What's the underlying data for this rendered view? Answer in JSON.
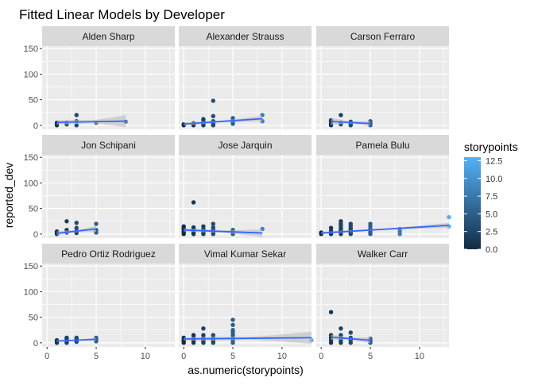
{
  "chart_data": {
    "type": "scatter",
    "title": "Fitted Linear Models by Developer",
    "xlabel": "as.numeric(storypoints)",
    "ylabel": "reported_dev",
    "xlim": [
      -0.5,
      13
    ],
    "ylim": [
      -8,
      155
    ],
    "x_ticks": [
      0,
      5,
      10
    ],
    "y_ticks": [
      0,
      50,
      100,
      150
    ],
    "grid": true,
    "facet_layout": {
      "rows": 3,
      "cols": 3
    },
    "legend": {
      "title": "storypoints",
      "placement": "right",
      "min": 0.0,
      "max": 13.0,
      "breaks": [
        "12.5",
        "10.0",
        "7.5",
        "5.0",
        "2.5",
        "0.0"
      ],
      "break_values": [
        12.5,
        10.0,
        7.5,
        5.0,
        2.5,
        0.0
      ],
      "color_low": "#132b43",
      "color_high": "#56b1f7"
    },
    "fit_line_color": "#3366ff",
    "ribbon_color": "#bdbdbd",
    "panels": [
      {
        "name": "Alden Sharp",
        "points": [
          [
            1,
            0
          ],
          [
            1,
            2
          ],
          [
            1,
            5
          ],
          [
            2,
            2
          ],
          [
            2,
            5
          ],
          [
            3,
            0
          ],
          [
            3,
            8
          ],
          [
            3,
            20
          ],
          [
            5,
            5
          ],
          [
            8,
            7
          ]
        ],
        "fit": {
          "x": [
            1,
            8
          ],
          "y": [
            5.8,
            8.2
          ]
        },
        "ribbon_halfwidth": [
          4,
          12
        ]
      },
      {
        "name": "Alexander Strauss",
        "points": [
          [
            0,
            0
          ],
          [
            0,
            2
          ],
          [
            1,
            0
          ],
          [
            1,
            2
          ],
          [
            1,
            4
          ],
          [
            2,
            0
          ],
          [
            2,
            2
          ],
          [
            2,
            5
          ],
          [
            2,
            8
          ],
          [
            2,
            12
          ],
          [
            3,
            0
          ],
          [
            3,
            3
          ],
          [
            3,
            8
          ],
          [
            3,
            18
          ],
          [
            3,
            48
          ],
          [
            5,
            3
          ],
          [
            5,
            6
          ],
          [
            5,
            10
          ],
          [
            5,
            14
          ],
          [
            8,
            8
          ],
          [
            8,
            20
          ]
        ],
        "fit": {
          "x": [
            0,
            8
          ],
          "y": [
            2.5,
            13
          ]
        },
        "ribbon_halfwidth": [
          3,
          6
        ]
      },
      {
        "name": "Carson Ferraro",
        "points": [
          [
            1,
            0
          ],
          [
            1,
            3
          ],
          [
            1,
            7
          ],
          [
            1,
            10
          ],
          [
            2,
            2
          ],
          [
            2,
            5
          ],
          [
            2,
            20
          ],
          [
            3,
            0
          ],
          [
            3,
            3
          ],
          [
            3,
            7
          ],
          [
            5,
            0
          ],
          [
            5,
            2
          ],
          [
            5,
            5
          ],
          [
            5,
            8
          ]
        ],
        "fit": {
          "x": [
            1,
            5
          ],
          "y": [
            7.5,
            3.5
          ]
        },
        "ribbon_halfwidth": [
          7,
          5
        ]
      },
      {
        "name": "Jon Schipani",
        "points": [
          [
            1,
            0
          ],
          [
            1,
            2
          ],
          [
            1,
            5
          ],
          [
            2,
            3
          ],
          [
            2,
            8
          ],
          [
            2,
            25
          ],
          [
            3,
            2
          ],
          [
            3,
            6
          ],
          [
            3,
            12
          ],
          [
            3,
            22
          ],
          [
            5,
            3
          ],
          [
            5,
            8
          ],
          [
            5,
            20
          ]
        ],
        "fit": {
          "x": [
            1,
            5
          ],
          "y": [
            1.5,
            10
          ]
        },
        "ribbon_halfwidth": [
          4,
          6
        ]
      },
      {
        "name": "Jose Jarquin",
        "points": [
          [
            0,
            0
          ],
          [
            0,
            3
          ],
          [
            0,
            6
          ],
          [
            0,
            9
          ],
          [
            0,
            12
          ],
          [
            0,
            15
          ],
          [
            1,
            0
          ],
          [
            1,
            3
          ],
          [
            1,
            6
          ],
          [
            1,
            10
          ],
          [
            1,
            13
          ],
          [
            1,
            62
          ],
          [
            2,
            0
          ],
          [
            2,
            3
          ],
          [
            2,
            6
          ],
          [
            2,
            10
          ],
          [
            2,
            15
          ],
          [
            3,
            0
          ],
          [
            3,
            3
          ],
          [
            3,
            6
          ],
          [
            3,
            9
          ],
          [
            3,
            13
          ],
          [
            3,
            20
          ],
          [
            5,
            0
          ],
          [
            5,
            4
          ],
          [
            5,
            8
          ],
          [
            8,
            10
          ]
        ],
        "fit": {
          "x": [
            0,
            8
          ],
          "y": [
            8,
            2
          ]
        },
        "ribbon_halfwidth": [
          3,
          8
        ]
      },
      {
        "name": "Pamela Bulu",
        "points": [
          [
            0,
            0
          ],
          [
            0,
            3
          ],
          [
            1,
            0
          ],
          [
            1,
            3
          ],
          [
            1,
            6
          ],
          [
            1,
            12
          ],
          [
            2,
            0
          ],
          [
            2,
            3
          ],
          [
            2,
            6
          ],
          [
            2,
            9
          ],
          [
            2,
            12
          ],
          [
            2,
            16
          ],
          [
            2,
            20
          ],
          [
            2,
            25
          ],
          [
            3,
            0
          ],
          [
            3,
            3
          ],
          [
            3,
            6
          ],
          [
            3,
            9
          ],
          [
            3,
            12
          ],
          [
            3,
            16
          ],
          [
            3,
            20
          ],
          [
            5,
            0
          ],
          [
            5,
            3
          ],
          [
            5,
            6
          ],
          [
            5,
            10
          ],
          [
            5,
            15
          ],
          [
            5,
            20
          ],
          [
            8,
            0
          ],
          [
            8,
            5
          ],
          [
            8,
            10
          ],
          [
            13,
            15
          ],
          [
            13,
            33
          ]
        ],
        "fit": {
          "x": [
            0,
            13
          ],
          "y": [
            2,
            17
          ]
        },
        "ribbon_halfwidth": [
          2,
          5
        ]
      },
      {
        "name": "Pedro Ortiz Rodriguez",
        "points": [
          [
            1,
            0
          ],
          [
            1,
            3
          ],
          [
            1,
            5
          ],
          [
            2,
            0
          ],
          [
            2,
            3
          ],
          [
            2,
            8
          ],
          [
            2,
            10
          ],
          [
            3,
            2
          ],
          [
            3,
            5
          ],
          [
            3,
            8
          ],
          [
            3,
            10
          ],
          [
            5,
            3
          ],
          [
            5,
            6
          ],
          [
            5,
            10
          ]
        ],
        "fit": {
          "x": [
            1,
            5
          ],
          "y": [
            3.5,
            7
          ]
        },
        "ribbon_halfwidth": [
          2,
          3
        ]
      },
      {
        "name": "Vimal Kumar Sekar",
        "points": [
          [
            0,
            0
          ],
          [
            0,
            3
          ],
          [
            0,
            6
          ],
          [
            0,
            10
          ],
          [
            1,
            0
          ],
          [
            1,
            3
          ],
          [
            1,
            6
          ],
          [
            1,
            10
          ],
          [
            1,
            15
          ],
          [
            2,
            0
          ],
          [
            2,
            3
          ],
          [
            2,
            6
          ],
          [
            2,
            10
          ],
          [
            2,
            15
          ],
          [
            2,
            28
          ],
          [
            3,
            0
          ],
          [
            3,
            3
          ],
          [
            3,
            6
          ],
          [
            3,
            10
          ],
          [
            3,
            15
          ],
          [
            5,
            0
          ],
          [
            5,
            5
          ],
          [
            5,
            10
          ],
          [
            5,
            15
          ],
          [
            5,
            20
          ],
          [
            5,
            25
          ],
          [
            5,
            35
          ],
          [
            5,
            45
          ],
          [
            13,
            5
          ]
        ],
        "fit": {
          "x": [
            0,
            13
          ],
          "y": [
            7.5,
            10
          ]
        },
        "ribbon_halfwidth": [
          3,
          12
        ]
      },
      {
        "name": "Walker Carr",
        "points": [
          [
            1,
            0
          ],
          [
            1,
            5
          ],
          [
            1,
            10
          ],
          [
            1,
            15
          ],
          [
            1,
            60
          ],
          [
            2,
            0
          ],
          [
            2,
            5
          ],
          [
            2,
            10
          ],
          [
            2,
            15
          ],
          [
            2,
            28
          ],
          [
            3,
            0
          ],
          [
            3,
            5
          ],
          [
            3,
            10
          ],
          [
            3,
            20
          ],
          [
            5,
            0
          ],
          [
            5,
            4
          ],
          [
            5,
            8
          ]
        ],
        "fit": {
          "x": [
            1,
            5
          ],
          "y": [
            11,
            5
          ]
        },
        "ribbon_halfwidth": [
          5,
          6
        ]
      }
    ]
  }
}
